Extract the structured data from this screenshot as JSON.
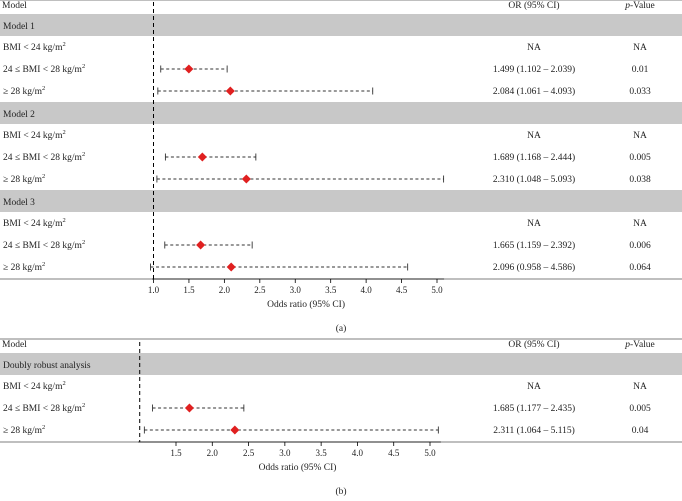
{
  "chart_data": [
    {
      "type": "forest",
      "panel_label": "(a)",
      "header": {
        "model": "Model",
        "or": "OR (95% CI)",
        "p_prefix": "p",
        "p_suffix": "-Value"
      },
      "xlabel": "Odds ratio (95% CI)",
      "reference_line": 1.0,
      "xlim": [
        0.98,
        5.1
      ],
      "ticks": [
        "1.0",
        "1.5",
        "2.0",
        "2.5",
        "3.0",
        "3.5",
        "4.0",
        "4.5",
        "5.0"
      ],
      "groups": [
        {
          "name": "Model 1",
          "rows": [
            {
              "label": "BMI < 24 kg/m²",
              "or": null,
              "lower": null,
              "upper": null,
              "or_text": "NA",
              "p_text": "NA"
            },
            {
              "label": "24 ≤ BMI < 28 kg/m²",
              "or": 1.499,
              "lower": 1.102,
              "upper": 2.039,
              "or_text": "1.499 (1.102 – 2.039)",
              "p_text": "0.01"
            },
            {
              "label": "≥ 28 kg/m²",
              "or": 2.084,
              "lower": 1.061,
              "upper": 4.093,
              "or_text": "2.084 (1.061 – 4.093)",
              "p_text": "0.033"
            }
          ]
        },
        {
          "name": "Model 2",
          "rows": [
            {
              "label": "BMI < 24 kg/m²",
              "or": null,
              "lower": null,
              "upper": null,
              "or_text": "NA",
              "p_text": "NA"
            },
            {
              "label": "24 ≤ BMI < 28 kg/m²",
              "or": 1.689,
              "lower": 1.168,
              "upper": 2.444,
              "or_text": "1.689 (1.168 – 2.444)",
              "p_text": "0.005"
            },
            {
              "label": "≥ 28 kg/m²",
              "or": 2.31,
              "lower": 1.048,
              "upper": 5.093,
              "or_text": "2.310 (1.048 – 5.093)",
              "p_text": "0.038"
            }
          ]
        },
        {
          "name": "Model 3",
          "rows": [
            {
              "label": "BMI < 24 kg/m²",
              "or": null,
              "lower": null,
              "upper": null,
              "or_text": "NA",
              "p_text": "NA"
            },
            {
              "label": "24 ≤ BMI < 28 kg/m²",
              "or": 1.665,
              "lower": 1.159,
              "upper": 2.392,
              "or_text": "1.665 (1.159 – 2.392)",
              "p_text": "0.006"
            },
            {
              "label": "≥ 28 kg/m²",
              "or": 2.096,
              "lower": 0.958,
              "upper": 4.586,
              "or_text": "2.096 (0.958 – 4.586)",
              "p_text": "0.064"
            }
          ]
        }
      ]
    },
    {
      "type": "forest",
      "panel_label": "(b)",
      "header": {
        "model": "Model",
        "or": "OR (95% CI)",
        "p_prefix": "p",
        "p_suffix": "-Value"
      },
      "xlabel": "Odds ratio (95% CI)",
      "reference_line": 1.0,
      "xlim": [
        0.98,
        5.15
      ],
      "ticks": [
        "1.5",
        "2.0",
        "2.5",
        "3.0",
        "3.5",
        "4.0",
        "4.5",
        "5.0"
      ],
      "groups": [
        {
          "name": "Doubly robust analysis",
          "rows": [
            {
              "label": "BMI < 24 kg/m²",
              "or": null,
              "lower": null,
              "upper": null,
              "or_text": "NA",
              "p_text": "NA"
            },
            {
              "label": "24 ≤  BMI < 28 kg/m²",
              "or": 1.685,
              "lower": 1.177,
              "upper": 2.435,
              "or_text": "1.685 (1.177 – 2.435)",
              "p_text": "0.005"
            },
            {
              "label": "≥ 28 kg/m²",
              "or": 2.311,
              "lower": 1.064,
              "upper": 5.115,
              "or_text": "2.311 (1.064 – 5.115)",
              "p_text": "0.04"
            }
          ]
        }
      ]
    }
  ],
  "colors": {
    "band": "#c8c8c8",
    "point": "#e02020",
    "line": "#333333",
    "text": "#222222"
  }
}
